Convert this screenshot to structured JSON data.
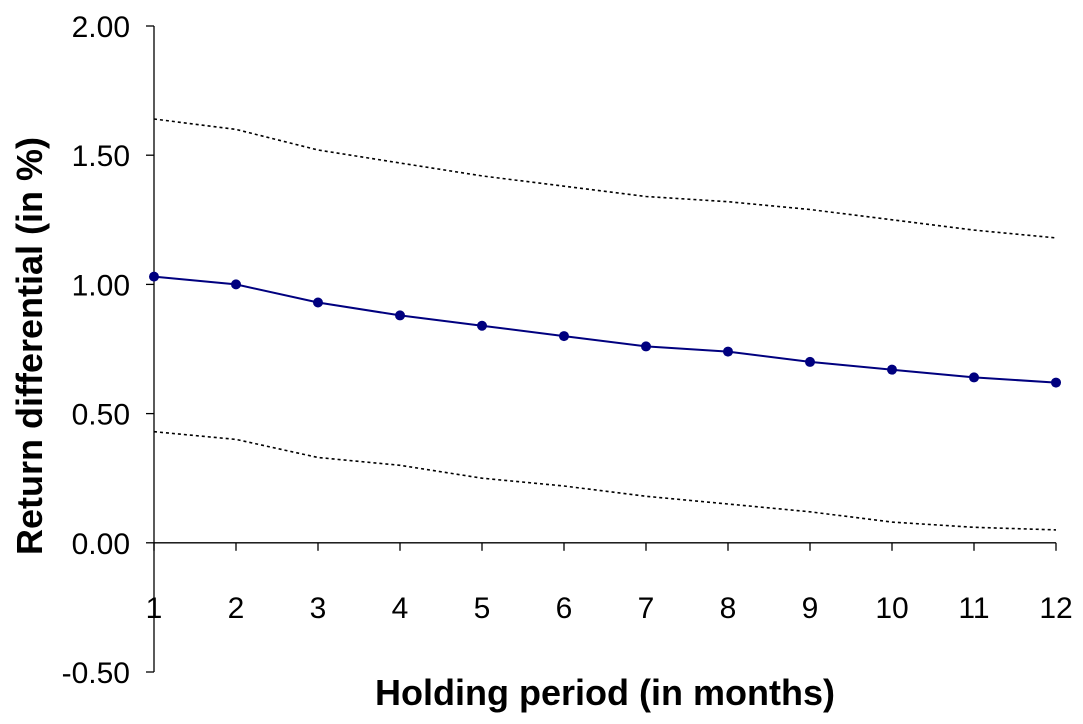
{
  "chart_data": {
    "type": "line",
    "title": "",
    "xlabel": "Holding period (in months)",
    "ylabel": "Return differential (in %)",
    "x": [
      1,
      2,
      3,
      4,
      5,
      6,
      7,
      8,
      9,
      10,
      11,
      12
    ],
    "x_tick_labels": [
      "1",
      "2",
      "3",
      "4",
      "5",
      "6",
      "7",
      "8",
      "9",
      "10",
      "11",
      "12"
    ],
    "y_tick_values": [
      -0.5,
      0,
      0.5,
      1,
      1.5,
      2
    ],
    "y_tick_labels": [
      "-0.50",
      "0.00",
      "0.50",
      "1.00",
      "1.50",
      "2.00"
    ],
    "ylim": [
      -0.5,
      2.0
    ],
    "xlim": [
      1,
      12
    ],
    "grid": false,
    "legend": "none",
    "series": [
      {
        "style": "solid-with-markers",
        "color": "#00007f",
        "values": [
          1.03,
          1.0,
          0.93,
          0.88,
          0.84,
          0.8,
          0.76,
          0.74,
          0.7,
          0.67,
          0.64,
          0.62
        ]
      },
      {
        "style": "dotted",
        "color": "#000000",
        "values": [
          1.64,
          1.6,
          1.52,
          1.47,
          1.42,
          1.38,
          1.34,
          1.32,
          1.29,
          1.25,
          1.21,
          1.18
        ]
      },
      {
        "style": "dotted",
        "color": "#000000",
        "values": [
          0.43,
          0.4,
          0.33,
          0.3,
          0.25,
          0.22,
          0.18,
          0.15,
          0.12,
          0.08,
          0.06,
          0.05
        ]
      }
    ]
  }
}
